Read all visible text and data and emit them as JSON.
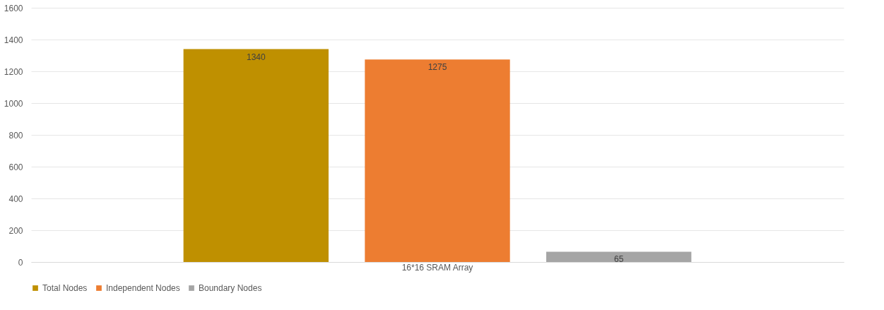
{
  "chart_data": {
    "type": "bar",
    "categories": [
      "16*16 SRAM Array"
    ],
    "series": [
      {
        "name": "Total Nodes",
        "color": "#bf9000",
        "values": [
          1340
        ]
      },
      {
        "name": "Independent Nodes",
        "color": "#ed7d31",
        "values": [
          1275
        ]
      },
      {
        "name": "Boundary Nodes",
        "color": "#a5a5a5",
        "values": [
          65
        ]
      }
    ],
    "ylim": [
      0,
      1600
    ],
    "yticks": [
      0,
      200,
      400,
      600,
      800,
      1000,
      1200,
      1400,
      1600
    ],
    "grid": "y",
    "legend": "bottom",
    "data_labels": true
  }
}
